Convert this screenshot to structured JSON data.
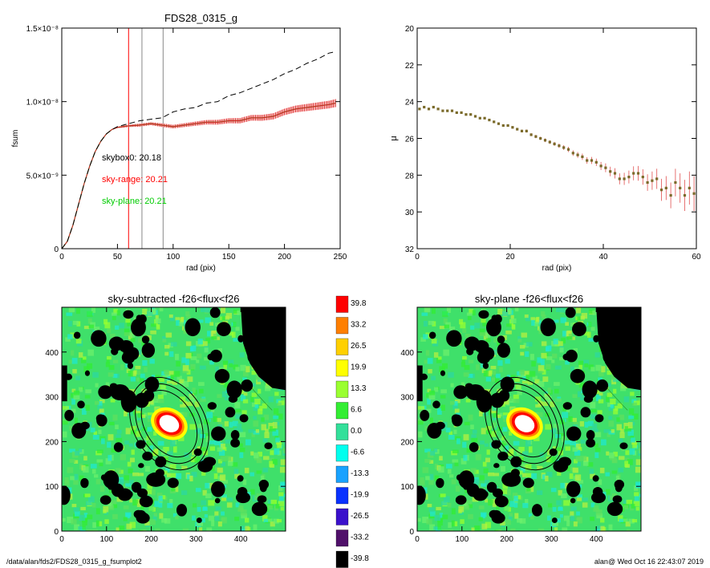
{
  "footer": {
    "path": "/data/alan/fds2/FDS28_0315_g_fsumplot2",
    "user_time": "alan@  Wed Oct 16 22:43:07 2019"
  },
  "chart_data": [
    {
      "type": "line",
      "title": "FDS28_0315_g",
      "xlabel": "rad (pix)",
      "ylabel": "fsum",
      "xlim": [
        0,
        250
      ],
      "ylim": [
        0,
        1.5e-08
      ],
      "xticks": [
        0,
        50,
        100,
        150,
        200,
        250
      ],
      "yticks": [
        {
          "value": 0,
          "label": "0"
        },
        {
          "value": 5e-09,
          "label": "5.0×10⁻⁹"
        },
        {
          "value": 1e-08,
          "label": "1.0×10⁻⁸"
        },
        {
          "value": 1.5e-08,
          "label": "1.5×10⁻⁸"
        }
      ],
      "vlines": [
        {
          "x": 60,
          "color": "#ff0000"
        },
        {
          "x": 72,
          "color": "#888888"
        },
        {
          "x": 91,
          "color": "#888888"
        }
      ],
      "annotations": [
        {
          "text": "skybox0: 20.18",
          "color": "#000000"
        },
        {
          "text": "sky-range: 20.21",
          "color": "#ff0000"
        },
        {
          "text": "sky-plane: 20.21",
          "color": "#00cc00"
        }
      ],
      "series": [
        {
          "style": "dashed",
          "color": "#000000",
          "x": [
            0,
            5,
            10,
            15,
            20,
            25,
            30,
            35,
            40,
            45,
            50,
            55,
            60,
            70,
            80,
            90,
            100,
            110,
            120,
            130,
            140,
            150,
            160,
            170,
            180,
            190,
            200,
            210,
            220,
            230,
            240,
            246
          ],
          "y": [
            0,
            5e-10,
            1.6e-09,
            3e-09,
            4.4e-09,
            5.6e-09,
            6.6e-09,
            7.3e-09,
            7.8e-09,
            8.1e-09,
            8.3e-09,
            8.4e-09,
            8.5e-09,
            8.7e-09,
            8.8e-09,
            8.9e-09,
            9.3e-09,
            9.5e-09,
            9.6e-09,
            9.9e-09,
            1e-08,
            1.04e-08,
            1.06e-08,
            1.09e-08,
            1.12e-08,
            1.15e-08,
            1.19e-08,
            1.22e-08,
            1.26e-08,
            1.29e-08,
            1.33e-08,
            1.34e-08
          ]
        },
        {
          "style": "solid-errorbars",
          "color": "#d62020",
          "band_color": "#f6a6a6",
          "x": [
            0,
            5,
            10,
            15,
            20,
            25,
            30,
            35,
            40,
            45,
            50,
            55,
            60,
            70,
            80,
            90,
            100,
            110,
            120,
            130,
            140,
            150,
            160,
            170,
            180,
            190,
            200,
            210,
            220,
            230,
            240,
            246
          ],
          "y": [
            0,
            5e-10,
            1.6e-09,
            3e-09,
            4.4e-09,
            5.6e-09,
            6.6e-09,
            7.3e-09,
            7.8e-09,
            8.1e-09,
            8.25e-09,
            8.3e-09,
            8.35e-09,
            8.4e-09,
            8.5e-09,
            8.4e-09,
            8.3e-09,
            8.4e-09,
            8.5e-09,
            8.6e-09,
            8.6e-09,
            8.7e-09,
            8.7e-09,
            8.9e-09,
            8.9e-09,
            9e-09,
            9.3e-09,
            9.5e-09,
            9.6e-09,
            9.7e-09,
            9.8e-09,
            9.9e-09
          ],
          "err": [
            0,
            0,
            0,
            0,
            0,
            0,
            0,
            0,
            0,
            0,
            5e-11,
            7e-11,
            8e-11,
            1e-10,
            1e-10,
            1.2e-10,
            1.2e-10,
            1.3e-10,
            1.4e-10,
            1.5e-10,
            1.6e-10,
            1.7e-10,
            1.8e-10,
            1.9e-10,
            2e-10,
            2.1e-10,
            2.2e-10,
            2.3e-10,
            2.4e-10,
            2.5e-10,
            2.6e-10,
            2.7e-10
          ]
        }
      ]
    },
    {
      "type": "scatter",
      "title": "",
      "xlabel": "rad (pix)",
      "ylabel": "μ",
      "xlim": [
        0,
        60
      ],
      "ylim": [
        32,
        20
      ],
      "xticks": [
        0,
        20,
        40,
        60
      ],
      "yticks": [
        20,
        22,
        24,
        26,
        28,
        30,
        32
      ],
      "marker_color": "#7a6a2a",
      "error_color": "#e05050",
      "series": [
        {
          "x": [
            0.5,
            1.5,
            2.5,
            3.5,
            4.5,
            5.5,
            6.5,
            7.5,
            8.5,
            9.5,
            10.5,
            11.5,
            12.5,
            13.5,
            14.5,
            15.5,
            16.5,
            17.5,
            18.5,
            19.5,
            20.5,
            21.5,
            22.5,
            23.5,
            24.5,
            25.5,
            26.5,
            27.5,
            28.5,
            29.5,
            30.5,
            31.5,
            32.5,
            33.5,
            34.5,
            35.5,
            36.5,
            37.5,
            38.5,
            39.5,
            40.5,
            41.5,
            42.5,
            43.5,
            44.5,
            45.5,
            46.5,
            47.5,
            48.5,
            49.5,
            50.5,
            51.5,
            52.5,
            53.5,
            54.5,
            55.5,
            56.5,
            57.5,
            58.5,
            59.5
          ],
          "y": [
            24.4,
            24.3,
            24.4,
            24.3,
            24.4,
            24.5,
            24.5,
            24.5,
            24.6,
            24.6,
            24.7,
            24.7,
            24.8,
            24.9,
            24.9,
            25.0,
            25.1,
            25.2,
            25.3,
            25.3,
            25.4,
            25.5,
            25.6,
            25.6,
            25.8,
            25.9,
            26.0,
            26.1,
            26.2,
            26.3,
            26.4,
            26.5,
            26.6,
            26.8,
            26.9,
            27.0,
            27.2,
            27.2,
            27.3,
            27.5,
            27.6,
            27.8,
            27.9,
            28.2,
            28.2,
            28.1,
            27.9,
            27.9,
            28.1,
            28.4,
            28.3,
            28.2,
            28.8,
            28.7,
            29.1,
            28.4,
            28.7,
            29.1,
            28.7,
            29.0
          ],
          "err": [
            0.05,
            0.05,
            0.05,
            0.05,
            0.05,
            0.05,
            0.05,
            0.05,
            0.05,
            0.05,
            0.05,
            0.05,
            0.05,
            0.05,
            0.05,
            0.05,
            0.06,
            0.06,
            0.06,
            0.06,
            0.07,
            0.07,
            0.07,
            0.08,
            0.08,
            0.09,
            0.09,
            0.1,
            0.1,
            0.11,
            0.12,
            0.13,
            0.14,
            0.15,
            0.16,
            0.17,
            0.18,
            0.19,
            0.2,
            0.22,
            0.24,
            0.26,
            0.28,
            0.3,
            0.33,
            0.35,
            0.38,
            0.4,
            0.42,
            0.45,
            0.5,
            0.55,
            0.6,
            0.65,
            0.7,
            0.75,
            0.8,
            0.85,
            0.9,
            0.95
          ]
        }
      ]
    },
    {
      "type": "heatmap",
      "title": "sky-subtracted -f26<flux<f26",
      "xlim": [
        0,
        500
      ],
      "ylim": [
        0,
        500
      ],
      "xticks": [
        0,
        100,
        200,
        300,
        400
      ],
      "yticks": [
        0,
        100,
        200,
        300,
        400
      ],
      "galaxy_center": [
        240,
        240
      ],
      "ellipse_semi_axes": [
        [
          55,
          80
        ],
        [
          68,
          95
        ],
        [
          80,
          110
        ]
      ],
      "ellipse_angle_deg": -30
    },
    {
      "type": "heatmap",
      "title": "sky-plane -f26<flux<f26",
      "xlim": [
        0,
        500
      ],
      "ylim": [
        0,
        500
      ],
      "xticks": [
        0,
        100,
        200,
        300,
        400
      ],
      "yticks": [
        0,
        100,
        200,
        300,
        400
      ],
      "galaxy_center": [
        240,
        240
      ],
      "ellipse_semi_axes": [
        [
          55,
          80
        ],
        [
          68,
          95
        ],
        [
          80,
          110
        ]
      ],
      "ellipse_angle_deg": -30
    },
    {
      "type": "colorbar",
      "levels": [
        {
          "label": "39.8",
          "color": "#ff0000"
        },
        {
          "label": "33.2",
          "color": "#ff7f00"
        },
        {
          "label": "26.5",
          "color": "#ffd000"
        },
        {
          "label": "19.9",
          "color": "#ffff00"
        },
        {
          "label": "13.3",
          "color": "#9aff30"
        },
        {
          "label": "6.6",
          "color": "#33ee33"
        },
        {
          "label": "0.0",
          "color": "#33e09a"
        },
        {
          "label": "-6.6",
          "color": "#00ffee"
        },
        {
          "label": "-13.3",
          "color": "#19a2ff"
        },
        {
          "label": "-19.9",
          "color": "#0a32ff"
        },
        {
          "label": "-26.5",
          "color": "#3a10cc"
        },
        {
          "label": "-33.2",
          "color": "#50106a"
        },
        {
          "label": "-39.8",
          "color": "#000000"
        }
      ]
    }
  ]
}
